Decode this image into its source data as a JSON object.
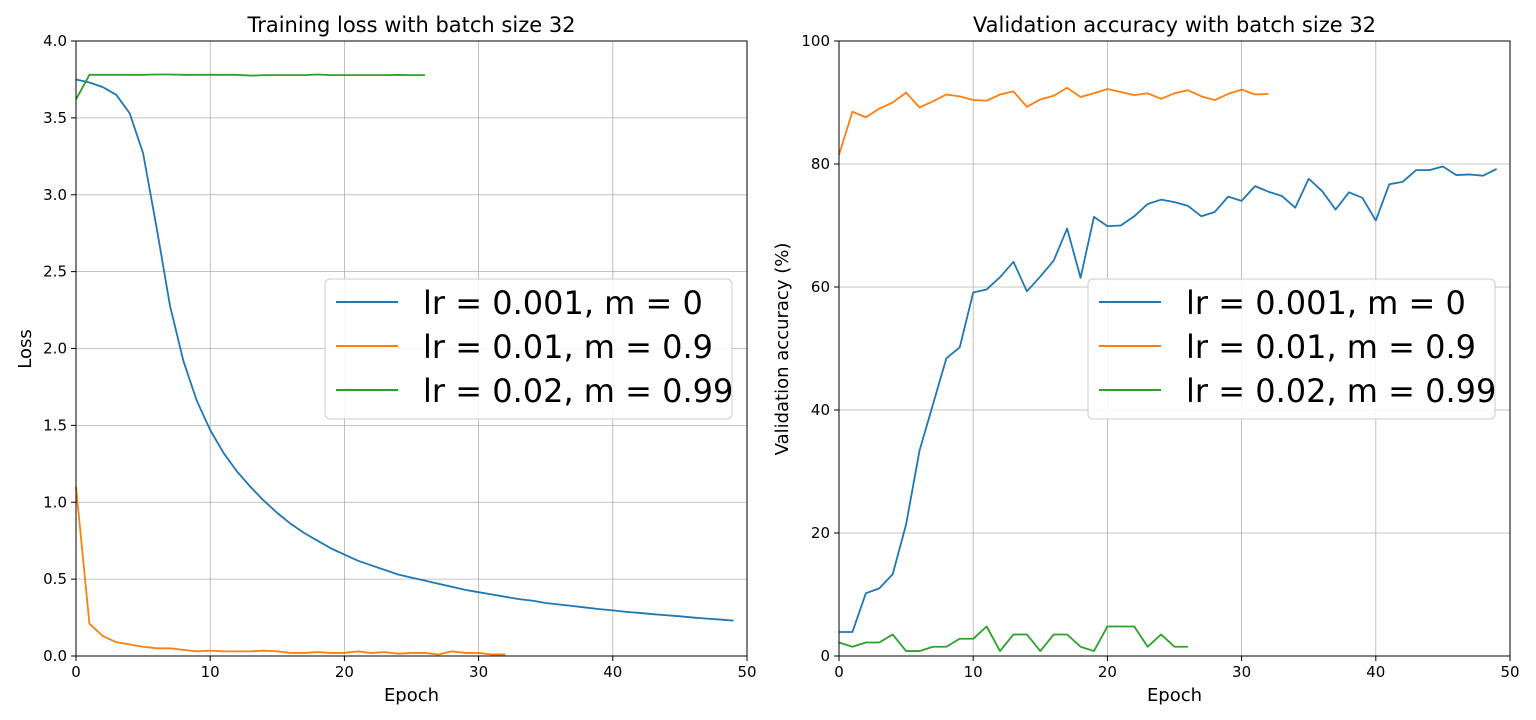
{
  "chart_data": [
    {
      "type": "line",
      "title": "Training loss with batch size 32",
      "xlabel": "Epoch",
      "ylabel": "Loss",
      "xlim": [
        0,
        50
      ],
      "ylim": [
        0,
        4.0
      ],
      "xticks": [
        "0",
        "10",
        "20",
        "30",
        "40",
        "50"
      ],
      "yticks": [
        "0.0",
        "0.5",
        "1.0",
        "1.5",
        "2.0",
        "2.5",
        "3.0",
        "3.5",
        "4.0"
      ],
      "grid": true,
      "legend_position": "center-right",
      "series": [
        {
          "name": "lr = 0.001, m = 0",
          "color": "#1f77b4",
          "x": [
            0,
            1,
            2,
            3,
            4,
            5,
            6,
            7,
            8,
            9,
            10,
            11,
            12,
            13,
            14,
            15,
            16,
            17,
            18,
            19,
            20,
            21,
            22,
            23,
            24,
            25,
            26,
            27,
            28,
            29,
            30,
            31,
            32,
            33,
            34,
            35,
            36,
            37,
            38,
            39,
            40,
            41,
            42,
            43,
            44,
            45,
            46,
            47,
            48,
            49
          ],
          "y": [
            3.75,
            3.73,
            3.7,
            3.65,
            3.53,
            3.27,
            2.79,
            2.28,
            1.92,
            1.66,
            1.47,
            1.32,
            1.2,
            1.1,
            1.01,
            0.93,
            0.86,
            0.8,
            0.75,
            0.7,
            0.66,
            0.62,
            0.59,
            0.56,
            0.53,
            0.51,
            0.49,
            0.47,
            0.45,
            0.43,
            0.415,
            0.4,
            0.385,
            0.37,
            0.36,
            0.345,
            0.335,
            0.325,
            0.315,
            0.305,
            0.297,
            0.287,
            0.28,
            0.272,
            0.265,
            0.258,
            0.25,
            0.243,
            0.237,
            0.23
          ]
        },
        {
          "name": "lr = 0.01, m = 0.9",
          "color": "#ff7f0e",
          "x": [
            0,
            1,
            2,
            3,
            4,
            5,
            6,
            7,
            8,
            9,
            10,
            11,
            12,
            13,
            14,
            15,
            16,
            17,
            18,
            19,
            20,
            21,
            22,
            23,
            24,
            25,
            26,
            27,
            28,
            29,
            30,
            31,
            32
          ],
          "y": [
            1.1,
            0.21,
            0.13,
            0.09,
            0.075,
            0.06,
            0.05,
            0.05,
            0.04,
            0.03,
            0.035,
            0.03,
            0.03,
            0.03,
            0.035,
            0.03,
            0.02,
            0.02,
            0.025,
            0.02,
            0.02,
            0.03,
            0.02,
            0.025,
            0.015,
            0.02,
            0.02,
            0.01,
            0.03,
            0.02,
            0.02,
            0.01,
            0.01
          ]
        },
        {
          "name": "lr = 0.02, m = 0.99",
          "color": "#2ca02c",
          "x": [
            0,
            1,
            2,
            3,
            4,
            5,
            6,
            7,
            8,
            9,
            10,
            11,
            12,
            13,
            14,
            15,
            16,
            17,
            18,
            19,
            20,
            21,
            22,
            23,
            24,
            25,
            26
          ],
          "y": [
            3.62,
            3.78,
            3.78,
            3.78,
            3.78,
            3.78,
            3.782,
            3.782,
            3.78,
            3.78,
            3.78,
            3.78,
            3.78,
            3.775,
            3.778,
            3.778,
            3.778,
            3.778,
            3.782,
            3.778,
            3.778,
            3.778,
            3.778,
            3.778,
            3.78,
            3.778,
            3.778
          ]
        }
      ]
    },
    {
      "type": "line",
      "title": "Validation accuracy with batch size 32",
      "xlabel": "Epoch",
      "ylabel": "Validation accuracy (%)",
      "xlim": [
        0,
        50
      ],
      "ylim": [
        0,
        100
      ],
      "xticks": [
        "0",
        "10",
        "20",
        "30",
        "40",
        "50"
      ],
      "yticks": [
        "0",
        "20",
        "40",
        "60",
        "80",
        "100"
      ],
      "grid": true,
      "legend_position": "center-right",
      "series": [
        {
          "name": "lr = 0.001, m = 0",
          "color": "#1f77b4",
          "x": [
            0,
            1,
            2,
            3,
            4,
            5,
            6,
            7,
            8,
            9,
            10,
            11,
            12,
            13,
            14,
            15,
            16,
            17,
            18,
            19,
            20,
            21,
            22,
            23,
            24,
            25,
            26,
            27,
            28,
            29,
            30,
            31,
            32,
            33,
            34,
            35,
            36,
            37,
            38,
            39,
            40,
            41,
            42,
            43,
            44,
            45,
            46,
            47,
            48,
            49
          ],
          "y": [
            3.9,
            3.9,
            10.2,
            11.0,
            13.3,
            21.4,
            33.4,
            40.9,
            48.4,
            50.2,
            59.1,
            59.6,
            61.6,
            64.1,
            59.3,
            61.7,
            64.3,
            69.5,
            61.5,
            71.4,
            69.9,
            70.0,
            71.5,
            73.5,
            74.2,
            73.8,
            73.2,
            71.5,
            72.2,
            74.7,
            74.0,
            76.4,
            75.5,
            74.8,
            72.9,
            77.6,
            75.6,
            72.6,
            75.4,
            74.5,
            70.8,
            76.7,
            77.1,
            79.0,
            79.0,
            79.6,
            78.2,
            78.3,
            78.1,
            79.2
          ]
        },
        {
          "name": "lr = 0.01, m = 0.9",
          "color": "#ff7f0e",
          "x": [
            0,
            1,
            2,
            3,
            4,
            5,
            6,
            7,
            8,
            9,
            10,
            11,
            12,
            13,
            14,
            15,
            16,
            17,
            18,
            19,
            20,
            21,
            22,
            23,
            24,
            25,
            26,
            27,
            28,
            29,
            30,
            31,
            32
          ],
          "y": [
            81.5,
            88.5,
            87.6,
            89.0,
            90.0,
            91.6,
            89.2,
            90.2,
            91.3,
            91.0,
            90.4,
            90.3,
            91.3,
            91.8,
            89.3,
            90.5,
            91.1,
            92.4,
            90.9,
            91.5,
            92.2,
            91.7,
            91.2,
            91.5,
            90.6,
            91.5,
            92.0,
            91.0,
            90.4,
            91.4,
            92.1,
            91.3,
            91.4
          ]
        },
        {
          "name": "lr = 0.02, m = 0.99",
          "color": "#2ca02c",
          "x": [
            0,
            1,
            2,
            3,
            4,
            5,
            6,
            7,
            8,
            9,
            10,
            11,
            12,
            13,
            14,
            15,
            16,
            17,
            18,
            19,
            20,
            21,
            22,
            23,
            24,
            25,
            26
          ],
          "y": [
            2.2,
            1.5,
            2.2,
            2.2,
            3.5,
            0.8,
            0.8,
            1.5,
            1.5,
            2.8,
            2.8,
            4.8,
            0.8,
            3.5,
            3.5,
            0.8,
            3.5,
            3.5,
            1.5,
            0.8,
            4.8,
            4.8,
            4.8,
            1.5,
            3.5,
            1.5,
            1.5
          ]
        }
      ]
    }
  ]
}
